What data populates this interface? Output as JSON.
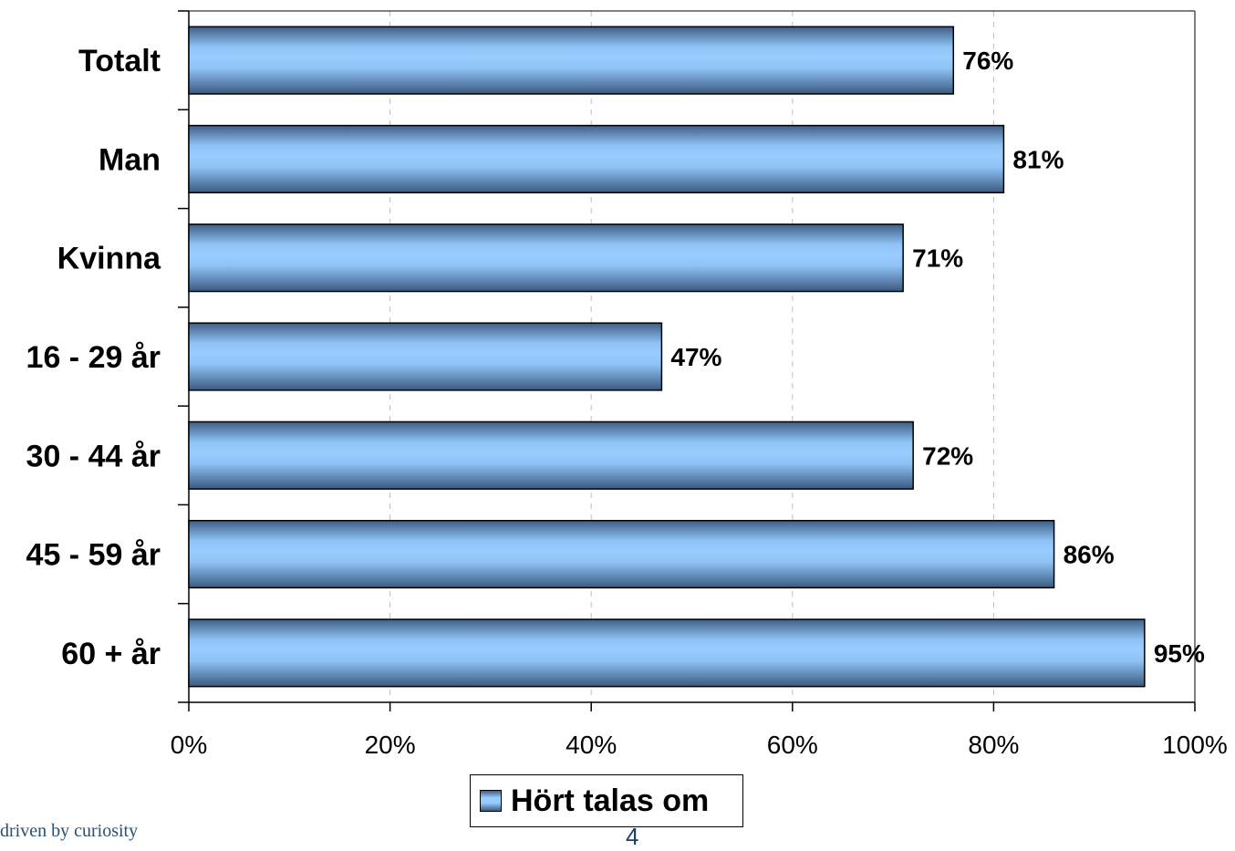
{
  "chart_data": {
    "type": "bar",
    "orientation": "horizontal",
    "categories": [
      "Totalt",
      "Man",
      "Kvinna",
      "16 - 29 år",
      "30 - 44 år",
      "45 - 59 år",
      "60 + år"
    ],
    "series": [
      {
        "name": "Hört talas om",
        "values": [
          76,
          81,
          71,
          47,
          72,
          86,
          95
        ],
        "labels": [
          "76%",
          "81%",
          "71%",
          "47%",
          "72%",
          "86%",
          "95%"
        ]
      }
    ],
    "title": "",
    "xlabel": "",
    "ylabel": "",
    "xlim": [
      0,
      100
    ],
    "x_ticks": [
      0,
      20,
      40,
      60,
      80,
      100
    ],
    "x_tick_labels": [
      "0%",
      "20%",
      "40%",
      "60%",
      "80%",
      "100%"
    ],
    "grid": "vertical dashed",
    "legend": "bottom-center",
    "colors": {
      "bar_light": "#99ccff",
      "bar_dark": "#3f5e86",
      "grid": "#bfbfbf",
      "axis": "#000000"
    }
  },
  "legend": {
    "label": "Hört talas om"
  },
  "footer": {
    "logo_text": "driven by curiosity",
    "page_number": "4"
  }
}
